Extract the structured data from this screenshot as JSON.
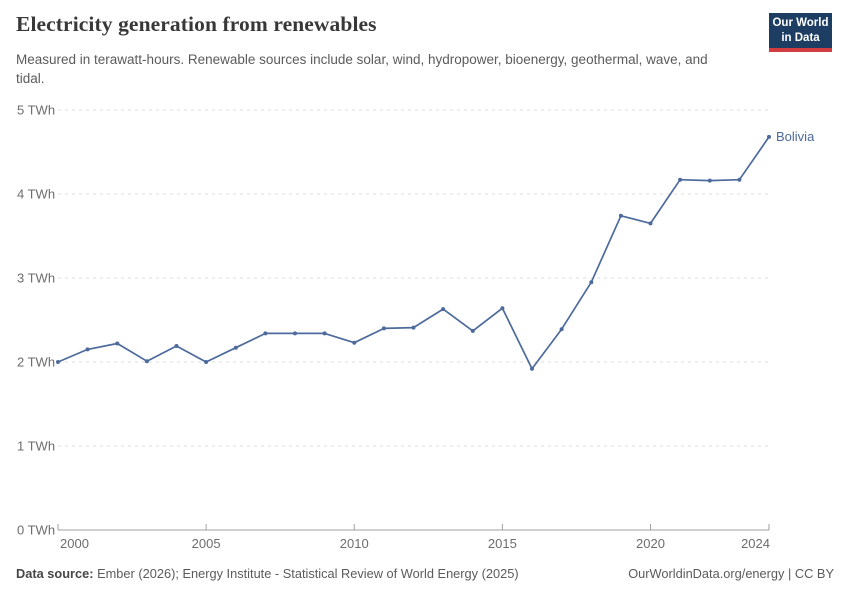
{
  "header": {
    "title": "Electricity generation from renewables",
    "subtitle": "Measured in terawatt-hours. Renewable sources include solar, wind, hydropower, bioenergy, geothermal, wave, and tidal.",
    "logo": {
      "line1": "Our World",
      "line2": "in Data",
      "bg_color": "#1d3d63",
      "accent_color": "#d13d40"
    }
  },
  "chart_data": {
    "type": "line",
    "title": "Electricity generation from renewables",
    "unit": "TWh",
    "xlim": [
      2000,
      2024
    ],
    "ylim": [
      0,
      5
    ],
    "x_ticks": [
      2000,
      2005,
      2010,
      2015,
      2020,
      2024
    ],
    "y_ticks": [
      0,
      1,
      2,
      3,
      4,
      5
    ],
    "grid": "horizontal-dashed",
    "legend_position": "end-of-line-label",
    "grid_color": "#dcdcdc",
    "axis_color": "#a0a0a0",
    "label_color": "#6d6d6d",
    "series": [
      {
        "name": "Bolivia",
        "color": "#4c6a9c",
        "x": [
          2000,
          2001,
          2002,
          2003,
          2004,
          2005,
          2006,
          2007,
          2008,
          2009,
          2010,
          2011,
          2012,
          2013,
          2014,
          2015,
          2016,
          2017,
          2018,
          2019,
          2020,
          2021,
          2022,
          2023,
          2024
        ],
        "values": [
          2.0,
          2.15,
          2.22,
          2.01,
          2.19,
          2.0,
          2.17,
          2.34,
          2.34,
          2.34,
          2.23,
          2.4,
          2.41,
          2.63,
          2.37,
          2.64,
          1.92,
          2.39,
          2.95,
          3.74,
          3.65,
          4.17,
          4.16,
          4.17,
          4.68
        ]
      }
    ]
  },
  "footer": {
    "source_label": "Data source:",
    "source_text": "Ember (2026); Energy Institute - Statistical Review of World Energy (2025)",
    "right_text": "OurWorldinData.org/energy | CC BY"
  }
}
